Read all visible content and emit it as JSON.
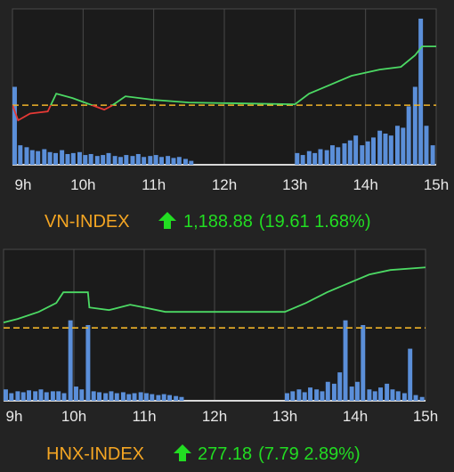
{
  "chart_data": [
    {
      "type": "line",
      "title": "VN-INDEX",
      "last": "1,188.88",
      "change": "(19.61 1.68%)",
      "reference": 1169.27,
      "xlim": [
        9,
        15
      ],
      "xticks": [
        {
          "value": 9,
          "label": "9h"
        },
        {
          "value": 10,
          "label": "10h"
        },
        {
          "value": 11,
          "label": "11h"
        },
        {
          "value": 12,
          "label": "12h"
        },
        {
          "value": 13,
          "label": "13h"
        },
        {
          "value": 14,
          "label": "14h"
        },
        {
          "value": 15,
          "label": "15h"
        }
      ],
      "ylim": [
        1149.4,
        1201.4
      ],
      "grid": true,
      "x": [
        9.0,
        9.08,
        9.25,
        9.5,
        9.62,
        9.85,
        10.3,
        10.4,
        10.6,
        11.0,
        11.5,
        13.0,
        13.2,
        13.5,
        13.8,
        14.2,
        14.5,
        14.7,
        14.8,
        15.0
      ],
      "series": [
        {
          "color": "#4cd964",
          "down_color": "#e53935",
          "values": [
            1169.27,
            1164.22,
            1166.5,
            1167.19,
            1173.13,
            1171.65,
            1167.78,
            1169.0,
            1172.24,
            1171.05,
            1170.16,
            1169.57,
            1173.13,
            1176.1,
            1179.07,
            1181.15,
            1182.05,
            1185.91,
            1188.88,
            1188.88
          ]
        }
      ],
      "volume": {
        "color": "#5b8fd9",
        "ylim": [
          0,
          160
        ],
        "x": [
          9.0,
          9.08,
          9.17,
          9.25,
          9.33,
          9.42,
          9.5,
          9.58,
          9.67,
          9.75,
          9.83,
          9.92,
          10.0,
          10.08,
          10.17,
          10.25,
          10.33,
          10.42,
          10.5,
          10.58,
          10.67,
          10.75,
          10.83,
          10.92,
          11.0,
          11.08,
          11.17,
          11.25,
          11.33,
          11.42,
          11.5,
          13.0,
          13.08,
          13.17,
          13.25,
          13.33,
          13.42,
          13.5,
          13.58,
          13.67,
          13.75,
          13.83,
          13.92,
          14.0,
          14.08,
          14.17,
          14.25,
          14.33,
          14.42,
          14.5,
          14.58,
          14.67,
          14.75,
          14.83,
          14.92
        ],
        "values": [
          80,
          20,
          18,
          15,
          14,
          16,
          13,
          12,
          15,
          11,
          12,
          13,
          10,
          11,
          9,
          10,
          12,
          9,
          8,
          10,
          9,
          11,
          8,
          9,
          10,
          8,
          9,
          7,
          8,
          6,
          4,
          12,
          10,
          14,
          12,
          16,
          15,
          20,
          18,
          22,
          25,
          30,
          20,
          24,
          28,
          35,
          32,
          30,
          40,
          38,
          60,
          80,
          150,
          40,
          20
        ]
      }
    },
    {
      "type": "line",
      "title": "HNX-INDEX",
      "last": "277.18",
      "change": "(7.79 2.89%)",
      "reference": 269.39,
      "xlim": [
        9,
        15
      ],
      "xticks": [
        {
          "value": 9,
          "label": "9h"
        },
        {
          "value": 10,
          "label": "10h"
        },
        {
          "value": 11,
          "label": "11h"
        },
        {
          "value": 12,
          "label": "12h"
        },
        {
          "value": 13,
          "label": "13h"
        },
        {
          "value": 14,
          "label": "14h"
        },
        {
          "value": 15,
          "label": "15h"
        }
      ],
      "ylim": [
        260.0,
        279.5
      ],
      "grid": true,
      "x": [
        9.0,
        9.2,
        9.5,
        9.75,
        9.85,
        10.2,
        10.22,
        10.5,
        10.8,
        11.0,
        11.3,
        13.0,
        13.3,
        13.6,
        13.9,
        14.2,
        14.5,
        15.0
      ],
      "series": [
        {
          "color": "#4cd964",
          "down_color": "#e53935",
          "values": [
            270.08,
            270.54,
            271.45,
            272.6,
            273.97,
            273.97,
            272.02,
            271.68,
            272.37,
            272.02,
            271.45,
            271.45,
            272.6,
            273.97,
            275.12,
            276.26,
            276.84,
            277.18
          ]
        }
      ],
      "volume": {
        "color": "#5b8fd9",
        "ylim": [
          0,
          160
        ],
        "x": [
          9.0,
          9.08,
          9.17,
          9.25,
          9.33,
          9.42,
          9.5,
          9.58,
          9.67,
          9.75,
          9.83,
          9.92,
          10.0,
          10.08,
          10.17,
          10.25,
          10.33,
          10.42,
          10.5,
          10.58,
          10.67,
          10.75,
          10.83,
          10.92,
          11.0,
          11.08,
          11.17,
          11.25,
          11.33,
          11.42,
          11.5,
          13.0,
          13.08,
          13.17,
          13.25,
          13.33,
          13.42,
          13.5,
          13.58,
          13.67,
          13.75,
          13.83,
          13.92,
          14.0,
          14.08,
          14.17,
          14.25,
          14.33,
          14.42,
          14.5,
          14.58,
          14.67,
          14.75,
          14.83,
          14.92
        ],
        "values": [
          12,
          8,
          10,
          9,
          11,
          10,
          12,
          9,
          10,
          10,
          8,
          85,
          15,
          12,
          80,
          10,
          9,
          8,
          10,
          8,
          9,
          7,
          8,
          9,
          8,
          7,
          6,
          7,
          6,
          5,
          4,
          8,
          10,
          12,
          9,
          14,
          12,
          10,
          20,
          18,
          30,
          85,
          15,
          20,
          80,
          12,
          10,
          14,
          18,
          12,
          10,
          8,
          55,
          6,
          4
        ]
      }
    }
  ]
}
